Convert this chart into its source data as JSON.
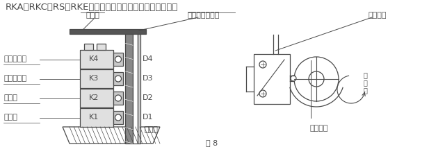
{
  "title_text": "RKA、RKC、RS、RKE型机无中间位微动开关和行程挡块。",
  "fig8_label": "图 8",
  "bg_color": "#ffffff",
  "line_color": "#4a4a4a",
  "font_size_title": 9.5,
  "font_size_label": 8.0,
  "font_size_small": 7.0,
  "labels_left": [
    "关向中间位",
    "开向中间位",
    "全开位",
    "全关位"
  ],
  "labels_k": [
    "K4",
    "K3",
    "K2",
    "K1"
  ],
  "labels_d": [
    "D4",
    "D3",
    "D2",
    "D1"
  ],
  "label_biaoduban": "标度板",
  "label_biaoduban_luoding": "标度板锁紧萧钉",
  "label_fuzhuzhou": "辅助轴",
  "label_weidong": "微动开关",
  "label_xingcheng": "行程挡块",
  "label_shunshizhen": "顺\n时\n针"
}
